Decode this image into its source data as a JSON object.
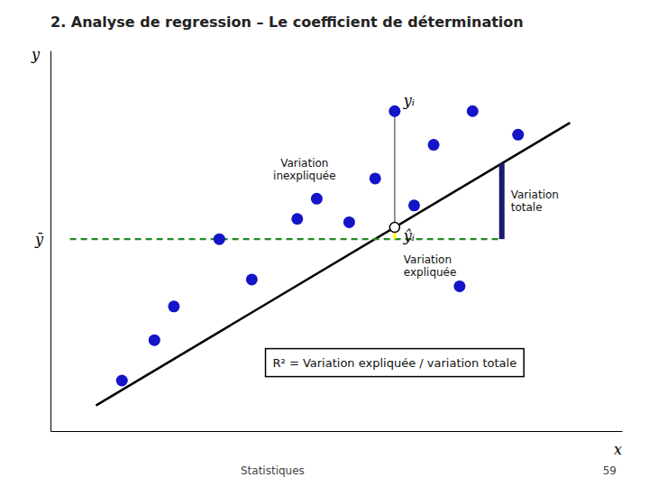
{
  "chart_data": {
    "type": "scatter",
    "title": "2. Analyse de regression – Le coefficient de détermination",
    "x_label": "x",
    "y_label": "y",
    "xlim": [
      -0.03,
      0.85
    ],
    "ylim": [
      -0.05,
      1.08
    ],
    "tick_labels": false,
    "x": [
      0.08,
      0.13,
      0.16,
      0.23,
      0.28,
      0.35,
      0.38,
      0.43,
      0.47,
      0.53,
      0.56,
      0.6,
      0.62,
      0.69
    ],
    "values": [
      0.1,
      0.22,
      0.32,
      0.52,
      0.4,
      0.58,
      0.64,
      0.57,
      0.7,
      0.62,
      0.8,
      0.38,
      0.9,
      0.83
    ],
    "color": "#1414C8",
    "regression_line": {
      "x": [
        0.04,
        0.77
      ],
      "values": [
        0.026,
        0.8655
      ],
      "color": "black"
    },
    "mean": {
      "value": 0.52,
      "x": [
        0.0,
        0.665
      ],
      "label": "ȳ",
      "color": "#228B22",
      "line_style": "dashed"
    },
    "point": {
      "x": 0.5,
      "y": 0.9,
      "fitted": 0.555,
      "label": "yᵢ",
      "fitted_label": "ŷᵢ"
    },
    "unexplained": {
      "color": "#888888",
      "label": [
        "Variation",
        "inexpliquée"
      ]
    },
    "explained": {
      "color": "yellow",
      "label": [
        "Variation",
        "expliquée"
      ]
    },
    "total": {
      "x": 0.665,
      "values": [
        0.52,
        0.74475
      ],
      "color": "#1a1a6e",
      "label": [
        "Variation",
        "totale"
      ]
    },
    "r2_text": "R² = Variation expliquée / variation totale",
    "footer": "Statistiques",
    "page": "59"
  }
}
